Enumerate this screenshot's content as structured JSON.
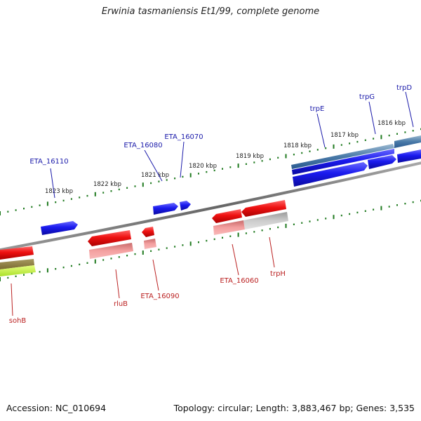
{
  "title": "Erwinia tasmaniensis Et1/99, complete genome",
  "footer": {
    "accession": "Accession: NC_010694",
    "summary": "Topology: circular; Length: 3,883,467 bp; Genes: 3,535"
  },
  "colors": {
    "forward": "#1a1aee",
    "reverse": "#ee1111",
    "forward_label": "#1a1aaa",
    "reverse_label": "#bb2222",
    "ruler_dot": "#1f7a1f",
    "backbone": "#777777"
  },
  "ruler_ticks": [
    "1823 kbp",
    "1822 kbp",
    "1821 kbp",
    "1820 kbp",
    "1819 kbp",
    "1818 kbp",
    "1817 kbp",
    "1816 kbp"
  ],
  "forward_genes": [
    {
      "name": "ETA_16110",
      "labeled": true
    },
    {
      "name": "ETA_16080",
      "labeled": true
    },
    {
      "name": "ETA_16070",
      "labeled": true
    },
    {
      "name": "trpE",
      "labeled": true
    },
    {
      "name": "trpG",
      "labeled": true
    },
    {
      "name": "trpD",
      "labeled": true
    }
  ],
  "reverse_genes": [
    {
      "name": "sohB",
      "labeled": true
    },
    {
      "name": "rluB",
      "labeled": true
    },
    {
      "name": "ETA_16090",
      "labeled": true
    },
    {
      "name": "ETA_16060",
      "labeled": true
    },
    {
      "name": "trpH",
      "labeled": true
    }
  ]
}
